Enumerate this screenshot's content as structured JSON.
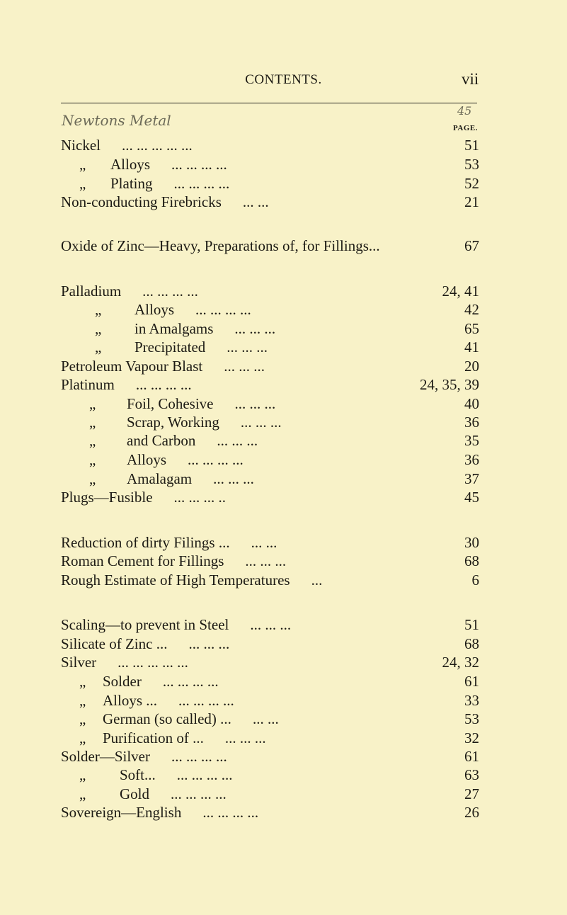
{
  "header": {
    "title": "CONTENTS.",
    "page_number": "vii"
  },
  "handwritten": {
    "note": "Newtons Metal",
    "page": "45"
  },
  "column_label": "PAGE.",
  "ditto": "„",
  "entries": [
    {
      "label": "Nickel",
      "leader": "...  ...  ...  ...  ...",
      "page": "51",
      "sub": false
    },
    {
      "label": "Alloys",
      "leader": "...  ...  ...  ...",
      "page": "53",
      "sub": true
    },
    {
      "label": "Plating",
      "leader": "...  ...  ...  ...",
      "page": "52",
      "sub": true
    },
    {
      "label": "Non-conducting Firebricks",
      "leader": "...  ...",
      "page": "21",
      "sub": false
    },
    {
      "label": "Oxide of Zinc—Heavy, Preparations of, for Fillings...",
      "leader": "",
      "page": "67",
      "sub": false
    },
    {
      "label": "Palladium",
      "leader": "...  ...  ...  ...",
      "page": "24, 41",
      "sub": false
    },
    {
      "label": "Alloys",
      "leader": "...  ...  ...  ...",
      "page": "42",
      "sub": true
    },
    {
      "label": "in Amalgams",
      "leader": "...  ...  ...",
      "page": "65",
      "sub": true
    },
    {
      "label": "Precipitated",
      "leader": "...  ...  ...",
      "page": "41",
      "sub": true
    },
    {
      "label": "Petroleum Vapour Blast",
      "leader": "...  ...  ...",
      "page": "20",
      "sub": false
    },
    {
      "label": "Platinum",
      "leader": "...  ...  ...  ...",
      "page": "24, 35, 39",
      "sub": false
    },
    {
      "label": "Foil, Cohesive",
      "leader": "...  ...  ...",
      "page": "40",
      "sub": true
    },
    {
      "label": "Scrap, Working",
      "leader": "...  ...  ...",
      "page": "36",
      "sub": true
    },
    {
      "label": "and Carbon",
      "leader": "...  ...  ...",
      "page": "35",
      "sub": true
    },
    {
      "label": "Alloys",
      "leader": "...  ...  ...  ...",
      "page": "36",
      "sub": true
    },
    {
      "label": "Amalagam",
      "leader": "...  ...  ...",
      "page": "37",
      "sub": true
    },
    {
      "label": "Plugs—Fusible",
      "leader": "...  ...  ...  ..",
      "page": "45",
      "sub": false
    },
    {
      "label": "Reduction of dirty Filings ...",
      "leader": "...  ...",
      "page": "30",
      "sub": false
    },
    {
      "label": "Roman Cement for Fillings",
      "leader": "...  ...  ...",
      "page": "68",
      "sub": false
    },
    {
      "label": "Rough Estimate of High Temperatures",
      "leader": "...",
      "page": "6",
      "sub": false
    },
    {
      "label": "Scaling—to prevent in Steel",
      "leader": "...  ...  ...",
      "page": "51",
      "sub": false
    },
    {
      "label": "Silicate of Zinc ...",
      "leader": "...  ...  ...",
      "page": "68",
      "sub": false
    },
    {
      "label": "Silver",
      "leader": "...  ...  ...  ...  ...",
      "page": "24, 32",
      "sub": false
    },
    {
      "label": "Solder",
      "leader": "...  ...  ...  ...",
      "page": "61",
      "sub": true
    },
    {
      "label": "Alloys ...",
      "leader": "...  ...  ...  ...",
      "page": "33",
      "sub": true
    },
    {
      "label": "German (so called) ...",
      "leader": "...  ...",
      "page": "53",
      "sub": true
    },
    {
      "label": "Purification of ...",
      "leader": "...  ...  ...",
      "page": "32",
      "sub": true
    },
    {
      "label": "Solder—Silver",
      "leader": "...  ...  ...  ...",
      "page": "61",
      "sub": false
    },
    {
      "label": "Soft...",
      "leader": "...  ...  ...  ...",
      "page": "63",
      "sub": true
    },
    {
      "label": "Gold",
      "leader": "...  ...  ...  ...",
      "page": "27",
      "sub": true
    },
    {
      "label": "Sovereign—English",
      "leader": "...  ...  ...  ...",
      "page": "26",
      "sub": false
    }
  ]
}
